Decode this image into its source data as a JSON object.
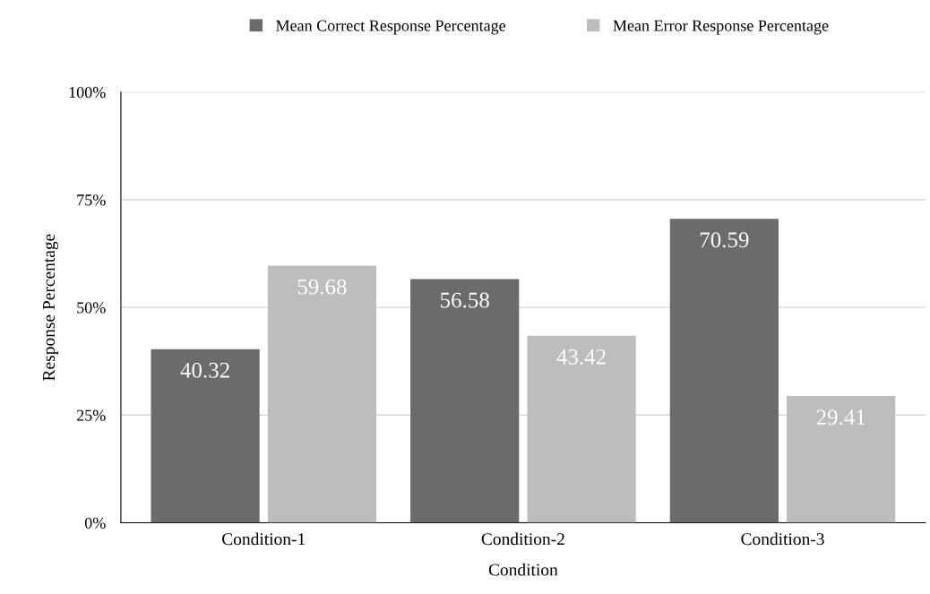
{
  "chart_data": {
    "type": "bar",
    "xlabel": "Condition",
    "ylabel": "Response Percentage",
    "categories": [
      "Condition-1",
      "Condition-2",
      "Condition-3"
    ],
    "series": [
      {
        "name": "Mean Correct Response Percentage",
        "color": "#6b6b6b",
        "values": [
          40.32,
          56.58,
          70.59
        ]
      },
      {
        "name": "Mean Error Response Percentage",
        "color": "#bdbdbd",
        "values": [
          59.68,
          43.42,
          29.41
        ]
      }
    ],
    "ylim": [
      0,
      100
    ],
    "yticks": [
      {
        "value": 0,
        "label": "0%"
      },
      {
        "value": 25,
        "label": "25%"
      },
      {
        "value": 50,
        "label": "50%"
      },
      {
        "value": 75,
        "label": "75%"
      },
      {
        "value": 100,
        "label": "100%"
      }
    ],
    "grid": "y",
    "legend": "top",
    "data_labels": true
  }
}
